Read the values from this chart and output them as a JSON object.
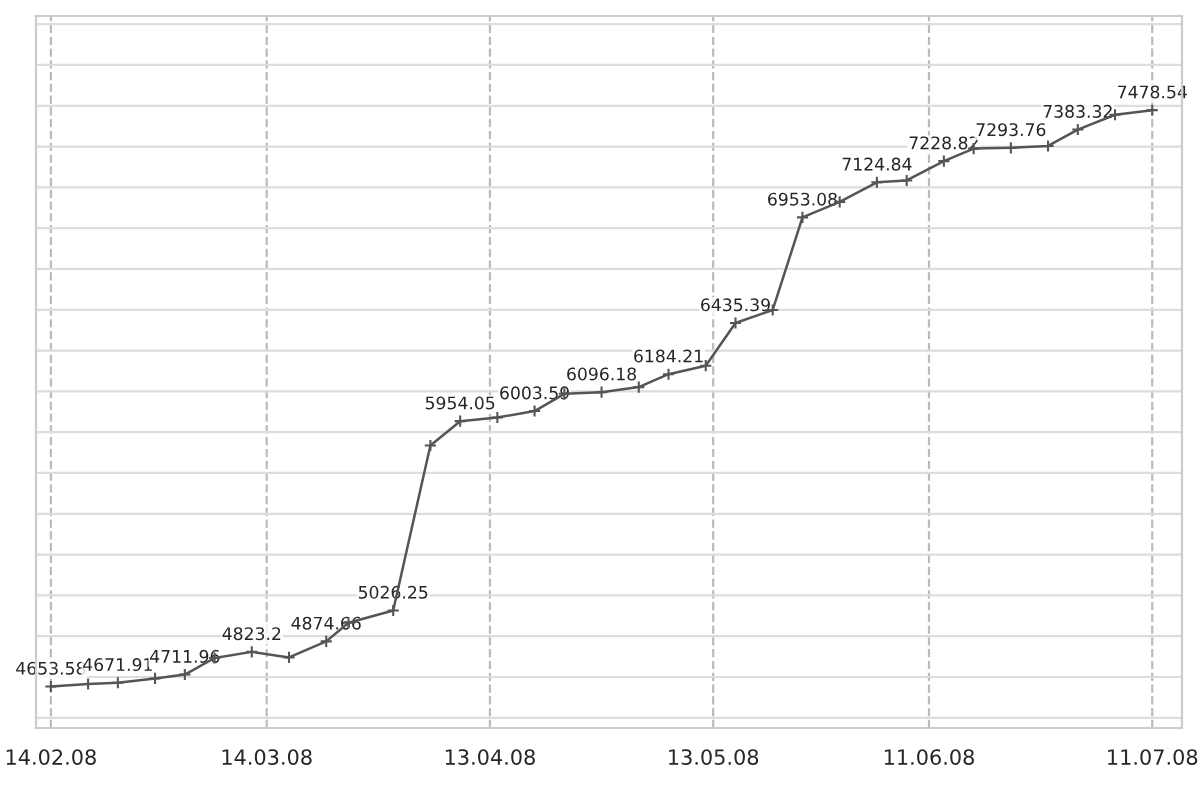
{
  "chart_data": {
    "type": "line",
    "x": [
      "2008-02-14",
      "2008-02-19",
      "2008-02-23",
      "2008-02-28",
      "2008-03-03",
      "2008-03-07",
      "2008-03-12",
      "2008-03-17",
      "2008-03-22",
      "2008-03-25",
      "2008-03-31",
      "2008-04-05",
      "2008-04-09",
      "2008-04-14",
      "2008-04-19",
      "2008-04-23",
      "2008-04-28",
      "2008-05-03",
      "2008-05-07",
      "2008-05-12",
      "2008-05-16",
      "2008-05-21",
      "2008-05-25",
      "2008-05-30",
      "2008-06-04",
      "2008-06-08",
      "2008-06-13",
      "2008-06-17",
      "2008-06-22",
      "2008-06-27",
      "2008-07-01",
      "2008-07-06",
      "2008-07-11"
    ],
    "series": [
      {
        "color": "#555555",
        "values": [
          4653.58,
          4666,
          4671.91,
          4693,
          4711.96,
          4793,
          4823.2,
          4796,
          4874.66,
          4966,
          5026.25,
          5835,
          5954.05,
          5972,
          6003.59,
          6088,
          6096.18,
          6121,
          6184.21,
          6226,
          6435.39,
          6499,
          6953.08,
          7029,
          7124.84,
          7134,
          7228.82,
          7290,
          7293.76,
          7303,
          7383.32,
          7456,
          7478.54
        ],
        "value_labels": [
          "4653.58",
          null,
          "4671.91",
          null,
          "4711.96",
          null,
          "4823.2",
          null,
          "4874.66",
          null,
          "5026.25",
          null,
          "5954.05",
          null,
          "6003.59",
          null,
          "6096.18",
          null,
          "6184.21",
          null,
          "6435.39",
          null,
          "6953.08",
          null,
          "7124.84",
          null,
          "7228.82",
          null,
          "7293.76",
          null,
          "7383.32",
          null,
          "7478.54"
        ]
      }
    ],
    "xlim": [
      "2008-02-12",
      "2008-07-15"
    ],
    "xticks": [
      {
        "value": "2008-02-14",
        "label": "14.02.08"
      },
      {
        "value": "2008-03-14",
        "label": "14.03.08"
      },
      {
        "value": "2008-04-13",
        "label": "13.04.08"
      },
      {
        "value": "2008-05-13",
        "label": "13.05.08"
      },
      {
        "value": "2008-06-11",
        "label": "11.06.08"
      },
      {
        "value": "2008-07-11",
        "label": "11.07.08"
      }
    ],
    "ylim": [
      4450,
      7940
    ],
    "yticks": [
      {
        "value": 4500,
        "label": null
      },
      {
        "value": 4700,
        "label": null
      },
      {
        "value": 4900,
        "label": null
      },
      {
        "value": 5100,
        "label": null
      },
      {
        "value": 5300,
        "label": null
      },
      {
        "value": 5500,
        "label": null
      },
      {
        "value": 5700,
        "label": null
      },
      {
        "value": 5900,
        "label": null
      },
      {
        "value": 6100,
        "label": null
      },
      {
        "value": 6300,
        "label": null
      },
      {
        "value": 6500,
        "label": null
      },
      {
        "value": 6700,
        "label": null
      },
      {
        "value": 6900,
        "label": null
      },
      {
        "value": 7100,
        "label": null
      },
      {
        "value": 7300,
        "label": null
      },
      {
        "value": 7500,
        "label": null
      },
      {
        "value": 7700,
        "label": null
      },
      {
        "value": 7900,
        "label": null
      }
    ],
    "tick_labels": "x",
    "grid": true,
    "marker": "cross",
    "line_style": "solid"
  }
}
